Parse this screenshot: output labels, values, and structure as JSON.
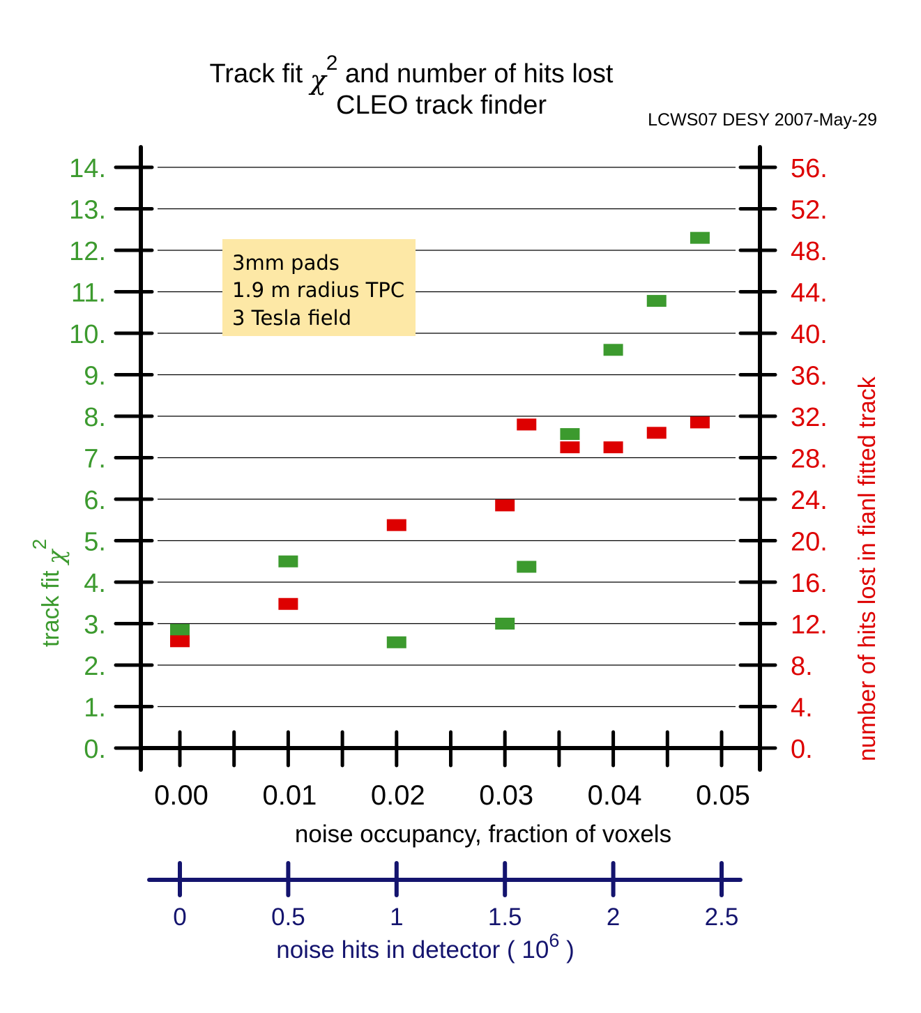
{
  "header": {
    "title_part1": "Track fit ",
    "title_chi": "χ",
    "title_sup": "2",
    "title_part2": " and number of hits lost",
    "subtitle": "CLEO track finder",
    "conference": "LCWS07 DESY 2007-May-29"
  },
  "annotation": {
    "lines": [
      "3mm pads",
      "1.9 m radius TPC",
      "3 Tesla field"
    ]
  },
  "colors": {
    "green": "#3c9a2e",
    "red": "#dd0000",
    "navy": "#14146e",
    "box": "#fde8a6",
    "axis": "#000000",
    "grid": "#000000"
  },
  "chart_data": {
    "type": "scatter",
    "x_axis": {
      "label": "noise occupancy, fraction of voxels",
      "range": [
        -0.0037,
        0.0525
      ],
      "ticks": [
        0.0,
        0.005,
        0.01,
        0.015,
        0.02,
        0.025,
        0.03,
        0.035,
        0.04,
        0.045,
        0.05
      ],
      "tick_labels": [
        {
          "value": 0.0,
          "text": "0.00"
        },
        {
          "value": 0.01,
          "text": "0.01"
        },
        {
          "value": 0.02,
          "text": "0.02"
        },
        {
          "value": 0.03,
          "text": "0.03"
        },
        {
          "value": 0.04,
          "text": "0.04"
        },
        {
          "value": 0.05,
          "text": "0.05"
        }
      ]
    },
    "x2_axis": {
      "label_main": "noise hits in detector ( 10",
      "label_sup": "6",
      "label_end": " )",
      "tick_labels": [
        {
          "value": 0,
          "text": "0"
        },
        {
          "value": 0.5,
          "text": "0.5"
        },
        {
          "value": 1,
          "text": "1"
        },
        {
          "value": 1.5,
          "text": "1.5"
        },
        {
          "value": 2,
          "text": "2"
        },
        {
          "value": 2.5,
          "text": "2.5"
        }
      ]
    },
    "y_left": {
      "label_main": "track fit ",
      "label_chi": "χ",
      "label_sup": "2",
      "range": [
        0,
        14
      ],
      "ticks": [
        0,
        1,
        2,
        3,
        4,
        5,
        6,
        7,
        8,
        9,
        10,
        11,
        12,
        13,
        14
      ],
      "tick_labels": [
        "0.",
        "1.",
        "2.",
        "3.",
        "4.",
        "5.",
        "6.",
        "7.",
        "8.",
        "9.",
        "10.",
        "11.",
        "12.",
        "13.",
        "14."
      ]
    },
    "y_right": {
      "label": "number of hits lost in fianl fitted track",
      "range": [
        0,
        56
      ],
      "ticks": [
        0,
        4,
        8,
        12,
        16,
        20,
        24,
        28,
        32,
        36,
        40,
        44,
        48,
        52,
        56
      ],
      "tick_labels": [
        "0.",
        "4.",
        "8.",
        "12.",
        "16.",
        "20.",
        "24.",
        "28.",
        "32.",
        "36.",
        "40.",
        "44.",
        "48.",
        "52.",
        "56."
      ]
    },
    "grid": true,
    "series": [
      {
        "axis": "left",
        "color": "green",
        "points": [
          {
            "x": 0.0,
            "y": 2.85
          },
          {
            "x": 0.01,
            "y": 4.5
          },
          {
            "x": 0.02,
            "y": 2.55
          },
          {
            "x": 0.03,
            "y": 3.0
          },
          {
            "x": 0.032,
            "y": 4.37
          },
          {
            "x": 0.036,
            "y": 7.57
          },
          {
            "x": 0.04,
            "y": 9.6
          },
          {
            "x": 0.044,
            "y": 10.78
          },
          {
            "x": 0.048,
            "y": 12.3
          }
        ]
      },
      {
        "axis": "right",
        "color": "red",
        "points": [
          {
            "x": 0.0,
            "y": 10.3
          },
          {
            "x": 0.01,
            "y": 13.9
          },
          {
            "x": 0.02,
            "y": 21.5
          },
          {
            "x": 0.03,
            "y": 23.4
          },
          {
            "x": 0.032,
            "y": 31.2
          },
          {
            "x": 0.036,
            "y": 29.0
          },
          {
            "x": 0.04,
            "y": 29.0
          },
          {
            "x": 0.044,
            "y": 30.4
          },
          {
            "x": 0.048,
            "y": 31.4
          }
        ]
      }
    ]
  }
}
